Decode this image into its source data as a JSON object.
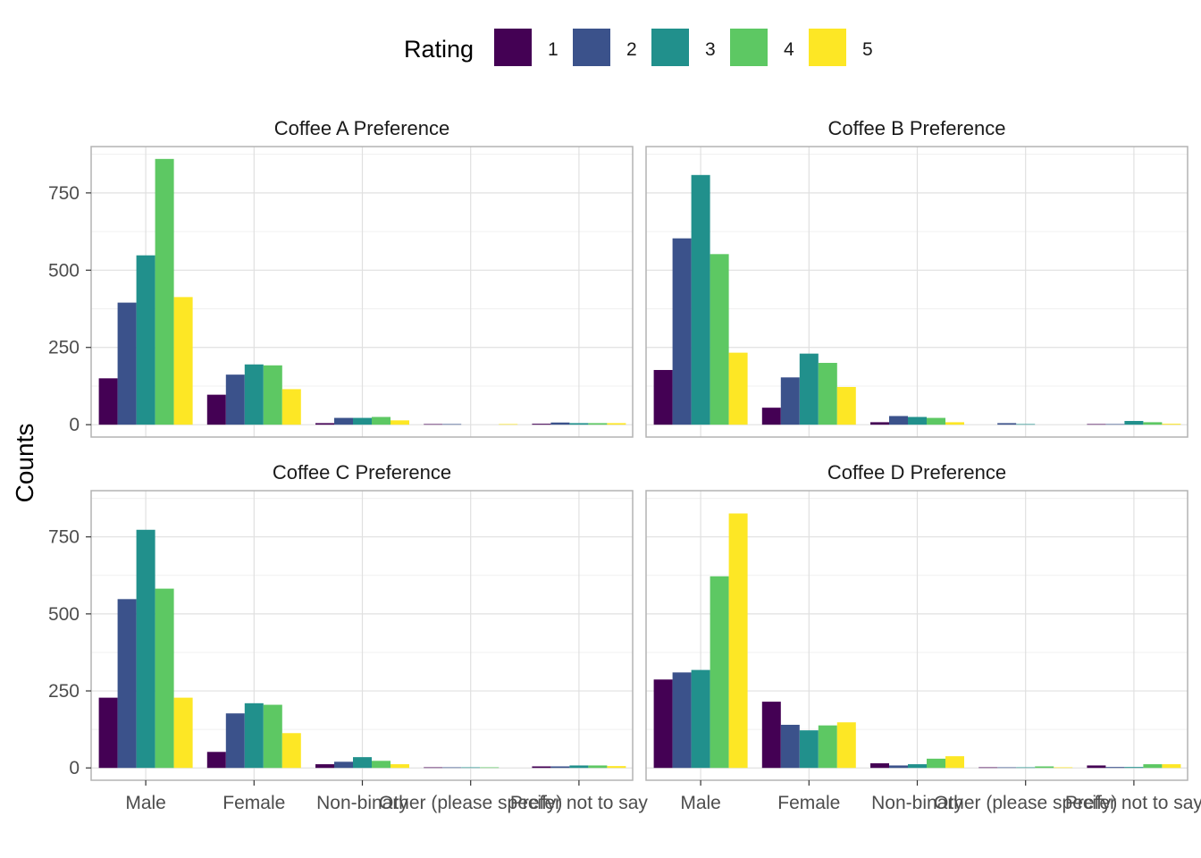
{
  "chart_data": {
    "type": "bar",
    "ylabel": "Counts",
    "xlabel": "",
    "legend": {
      "title": "Rating",
      "position": "top",
      "entries": [
        "1",
        "2",
        "3",
        "4",
        "5"
      ]
    },
    "colors": [
      "#440154",
      "#3b528b",
      "#21908c",
      "#5dc863",
      "#fde725"
    ],
    "categories": [
      "Male",
      "Female",
      "Non-binary",
      "Other (please specify)",
      "Prefer not to say"
    ],
    "y_ticks": [
      "0",
      "250",
      "500",
      "750"
    ],
    "ylim": [
      -40,
      900
    ],
    "grid": true,
    "panels": [
      {
        "title": "Coffee A Preference",
        "series": [
          {
            "name": "1",
            "values": [
              150,
              97,
              5,
              2,
              3
            ]
          },
          {
            "name": "2",
            "values": [
              395,
              162,
              22,
              2,
              7
            ]
          },
          {
            "name": "3",
            "values": [
              548,
              195,
              22,
              0,
              5
            ]
          },
          {
            "name": "4",
            "values": [
              860,
              192,
              25,
              0,
              5
            ]
          },
          {
            "name": "5",
            "values": [
              413,
              115,
              14,
              2,
              5
            ]
          }
        ]
      },
      {
        "title": "Coffee B Preference",
        "series": [
          {
            "name": "1",
            "values": [
              177,
              55,
              8,
              0,
              2
            ]
          },
          {
            "name": "2",
            "values": [
              603,
              153,
              28,
              5,
              2
            ]
          },
          {
            "name": "3",
            "values": [
              808,
              230,
              25,
              2,
              12
            ]
          },
          {
            "name": "4",
            "values": [
              552,
              200,
              22,
              0,
              8
            ]
          },
          {
            "name": "5",
            "values": [
              233,
              122,
              8,
              0,
              3
            ]
          }
        ]
      },
      {
        "title": "Coffee C Preference",
        "series": [
          {
            "name": "1",
            "values": [
              228,
              52,
              12,
              2,
              5
            ]
          },
          {
            "name": "2",
            "values": [
              548,
              177,
              20,
              2,
              5
            ]
          },
          {
            "name": "3",
            "values": [
              773,
              210,
              35,
              2,
              8
            ]
          },
          {
            "name": "4",
            "values": [
              582,
              205,
              23,
              2,
              8
            ]
          },
          {
            "name": "5",
            "values": [
              228,
              113,
              12,
              0,
              6
            ]
          }
        ]
      },
      {
        "title": "Coffee D Preference",
        "series": [
          {
            "name": "1",
            "values": [
              287,
              215,
              15,
              2,
              8
            ]
          },
          {
            "name": "2",
            "values": [
              310,
              140,
              8,
              2,
              3
            ]
          },
          {
            "name": "3",
            "values": [
              318,
              122,
              12,
              2,
              3
            ]
          },
          {
            "name": "4",
            "values": [
              622,
              138,
              30,
              5,
              12
            ]
          },
          {
            "name": "5",
            "values": [
              826,
              148,
              38,
              2,
              12
            ]
          }
        ]
      }
    ]
  }
}
